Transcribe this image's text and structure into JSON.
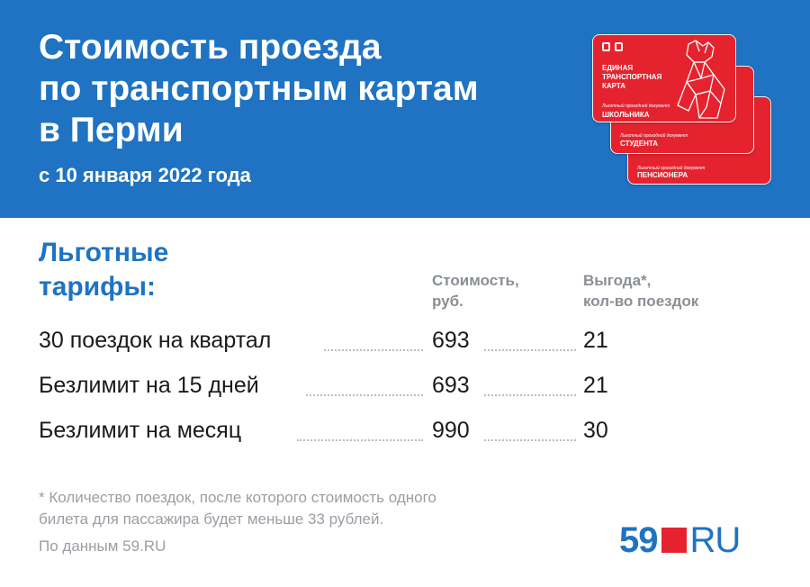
{
  "header": {
    "title_lines": [
      "Стоимость проезда",
      "по транспортным картам",
      "в Перми"
    ],
    "date": "с 10 января 2022 года"
  },
  "cards": [
    {
      "label_small": "Льготный проездной документ",
      "label": "ПЕНСИОНЕРА"
    },
    {
      "label_small": "Льготный проездной документ",
      "label": "СТУДЕНТА"
    },
    {
      "label_top": "ЕДИНАЯ ТРАНСПОРТНАЯ КАРТА",
      "label_small": "Льготный проездной документ",
      "label": "ШКОЛЬНИКА"
    }
  ],
  "section": {
    "title_lines": [
      "Льготные",
      "тарифы:"
    ]
  },
  "columns": {
    "cost": [
      "Стоимость,",
      "руб."
    ],
    "benefit": [
      "Выгода*,",
      "кол-во поездок"
    ]
  },
  "tariffs": [
    {
      "name": "30 поездок на квартал",
      "cost": "693",
      "benefit": "21"
    },
    {
      "name": "Безлимит на 15 дней",
      "cost": "693",
      "benefit": "21"
    },
    {
      "name": "Безлимит на месяц",
      "cost": "990",
      "benefit": "30"
    }
  ],
  "footnote_lines": [
    "* Количество поездок, после которого стоимость одного",
    "билета для пассажира будет меньше 33 рублей."
  ],
  "source": "По данным 59.RU",
  "logo": {
    "num": "59",
    "ru": "RU"
  },
  "colors": {
    "brand_blue": "#1f73c2",
    "brand_red": "#e5232f",
    "muted": "#9a9ea4"
  }
}
